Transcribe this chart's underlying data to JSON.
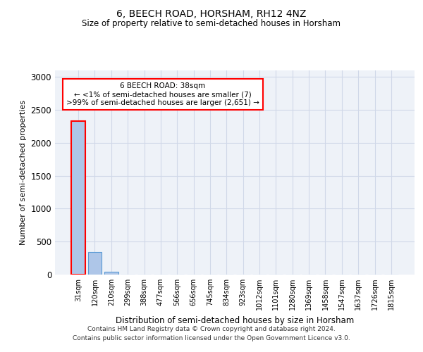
{
  "title": "6, BEECH ROAD, HORSHAM, RH12 4NZ",
  "subtitle": "Size of property relative to semi-detached houses in Horsham",
  "xlabel": "Distribution of semi-detached houses by size in Horsham",
  "ylabel": "Number of semi-detached properties",
  "footer_line1": "Contains HM Land Registry data © Crown copyright and database right 2024.",
  "footer_line2": "Contains public sector information licensed under the Open Government Licence v3.0.",
  "categories": [
    "31sqm",
    "120sqm",
    "210sqm",
    "299sqm",
    "388sqm",
    "477sqm",
    "566sqm",
    "656sqm",
    "745sqm",
    "834sqm",
    "923sqm",
    "1012sqm",
    "1101sqm",
    "1280sqm",
    "1369sqm",
    "1458sqm",
    "1547sqm",
    "1637sqm",
    "1726sqm",
    "1815sqm"
  ],
  "values": [
    2330,
    340,
    38,
    3,
    1,
    0,
    0,
    0,
    0,
    0,
    0,
    0,
    0,
    0,
    0,
    0,
    0,
    0,
    0,
    0
  ],
  "bar_color": "#aec6e8",
  "bar_edge_color": "#5b9bd5",
  "highlight_bar_index": 0,
  "highlight_color": "#ff0000",
  "annotation_text": "6 BEECH ROAD: 38sqm\n← <1% of semi-detached houses are smaller (7)\n>99% of semi-detached houses are larger (2,651) →",
  "annotation_box_color": "#ffffff",
  "annotation_box_edge_color": "#ff0000",
  "ylim": [
    0,
    3100
  ],
  "yticks": [
    0,
    500,
    1000,
    1500,
    2000,
    2500,
    3000
  ],
  "grid_color": "#d0d8e8",
  "background_color": "#ffffff",
  "plot_bg_color": "#eef2f8"
}
